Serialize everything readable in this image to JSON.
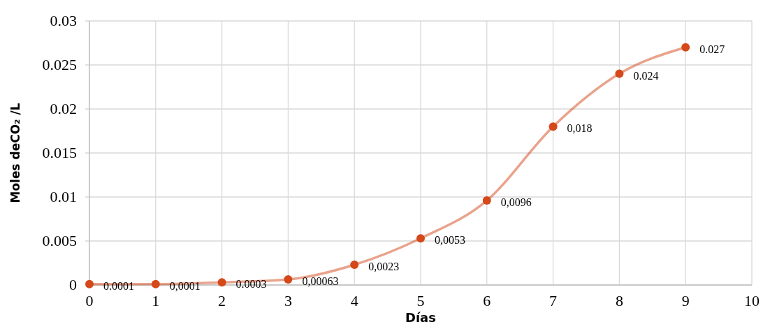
{
  "chart_data": {
    "type": "line",
    "xlabel": "Días",
    "ylabel": "Moles deCO₂ /L",
    "x": [
      0,
      1,
      2,
      3,
      4,
      5,
      6,
      7,
      8,
      9
    ],
    "series": [
      {
        "color": "#d4481a",
        "values": [
          0.0001,
          0.0001,
          0.0003,
          0.00063,
          0.0023,
          0.0053,
          0.0096,
          0.018,
          0.024,
          0.027
        ],
        "value_labels": [
          "0.0001",
          "0,0001",
          "0.0003",
          "0,00063",
          "0,0023",
          "0,0053",
          "0,0096",
          "0,018",
          "0.024",
          "0.027"
        ]
      }
    ],
    "xlim": [
      0,
      10
    ],
    "xticks": [
      0,
      1,
      2,
      3,
      4,
      5,
      6,
      7,
      8,
      9,
      10
    ],
    "ylim": [
      0,
      0.03
    ],
    "yticks": [
      0,
      0.005,
      0.01,
      0.015,
      0.02,
      0.025,
      0.03
    ],
    "grid": true,
    "marker": "circle",
    "line_style": "solid"
  }
}
